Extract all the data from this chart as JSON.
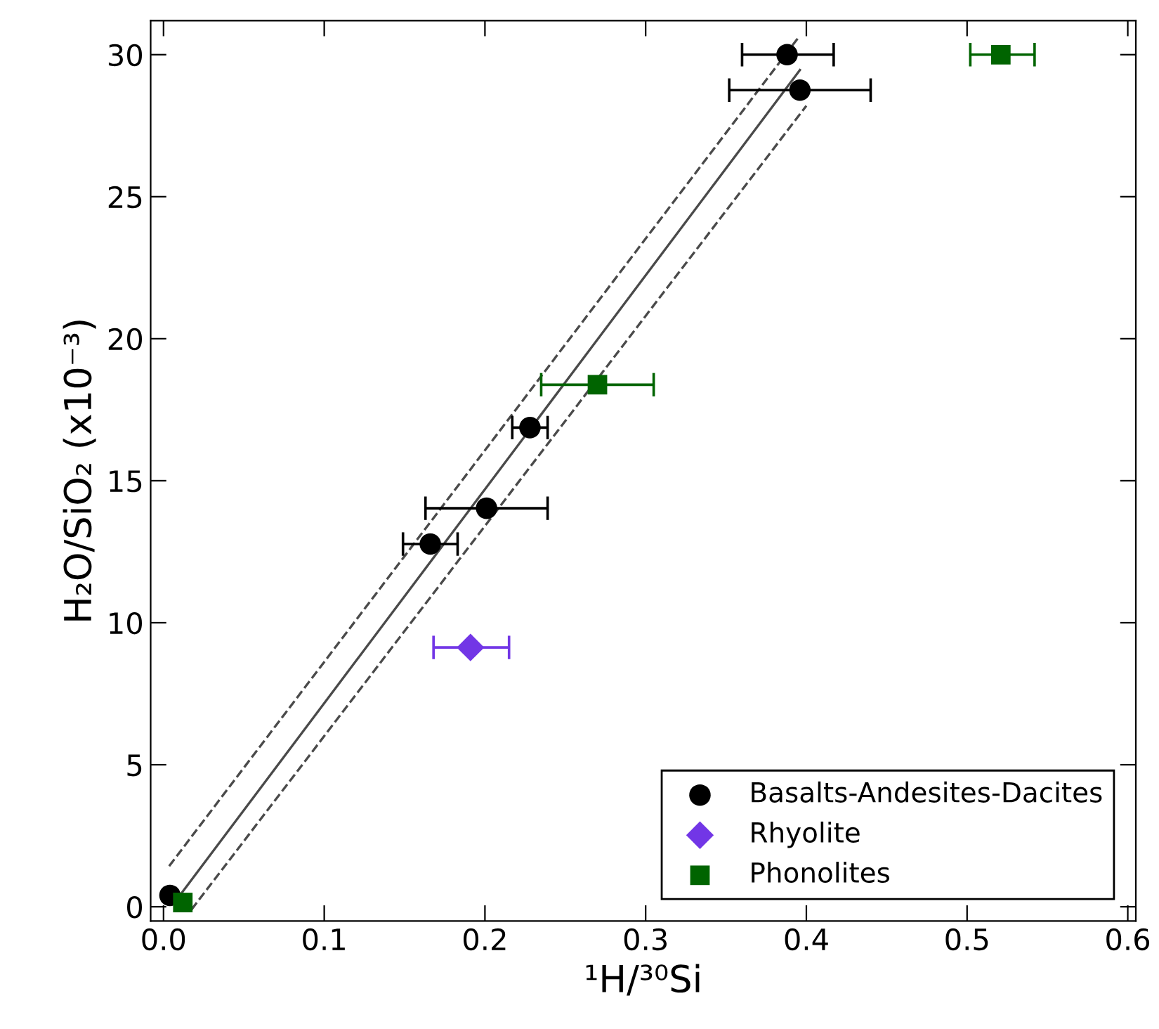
{
  "chart_data": {
    "type": "scatter",
    "xlabel": "¹H/³⁰Si",
    "ylabel": "H₂O/SiO₂ (x10⁻³)",
    "xlim": [
      -0.008,
      0.605
    ],
    "ylim": [
      -0.5,
      31.2
    ],
    "xticks": [
      {
        "value": 0,
        "label": "0.0"
      },
      0.1,
      0.2,
      0.3,
      0.4,
      0.5,
      0.6
    ],
    "yticks": [
      0,
      5,
      10,
      15,
      20,
      25,
      30
    ],
    "grid": false,
    "legend": "bottom right",
    "series": [
      {
        "name": "Basalts-Andesites-Dacites",
        "color": "#000000",
        "marker": "circle",
        "x": [
          0.388,
          0.396,
          0.228,
          0.201,
          0.166,
          0.004
        ],
        "values": [
          30.0,
          28.75,
          16.87,
          14.03,
          12.77,
          0.4
        ],
        "xerrors": [
          [
            0.36,
            0.417
          ],
          [
            0.352,
            0.44
          ],
          [
            0.217,
            0.239
          ],
          [
            0.163,
            0.239
          ],
          [
            0.149,
            0.183
          ],
          null
        ]
      },
      {
        "name": "Rhyolite",
        "color": "#7236e6",
        "marker": "diamond",
        "x": [
          0.191
        ],
        "values": [
          9.13
        ],
        "xerrors": [
          [
            0.168,
            0.215
          ]
        ]
      },
      {
        "name": "Phonolites",
        "color": "#006400",
        "marker": "square",
        "x": [
          0.521,
          0.27,
          0.012
        ],
        "values": [
          30.0,
          18.38,
          0.15
        ],
        "xerrors": [
          [
            0.502,
            0.542
          ],
          [
            0.235,
            0.305
          ],
          null
        ]
      },
      {
        "type": "line",
        "color": "#4a4a4a",
        "line_style": "solid",
        "marker": "none",
        "x": [
          0.0075,
          0.396
        ],
        "values": [
          0.2,
          29.46
        ]
      },
      {
        "type": "line",
        "color": "#4a4a4a",
        "line_style": "dashed",
        "marker": "none",
        "x": [
          0.0035,
          0.395
        ],
        "values": [
          1.43,
          30.6
        ]
      },
      {
        "type": "line",
        "color": "#4a4a4a",
        "line_style": "dashed",
        "marker": "none",
        "x": [
          0.0174,
          0.4
        ],
        "values": [
          -0.1,
          28.2
        ]
      }
    ]
  }
}
